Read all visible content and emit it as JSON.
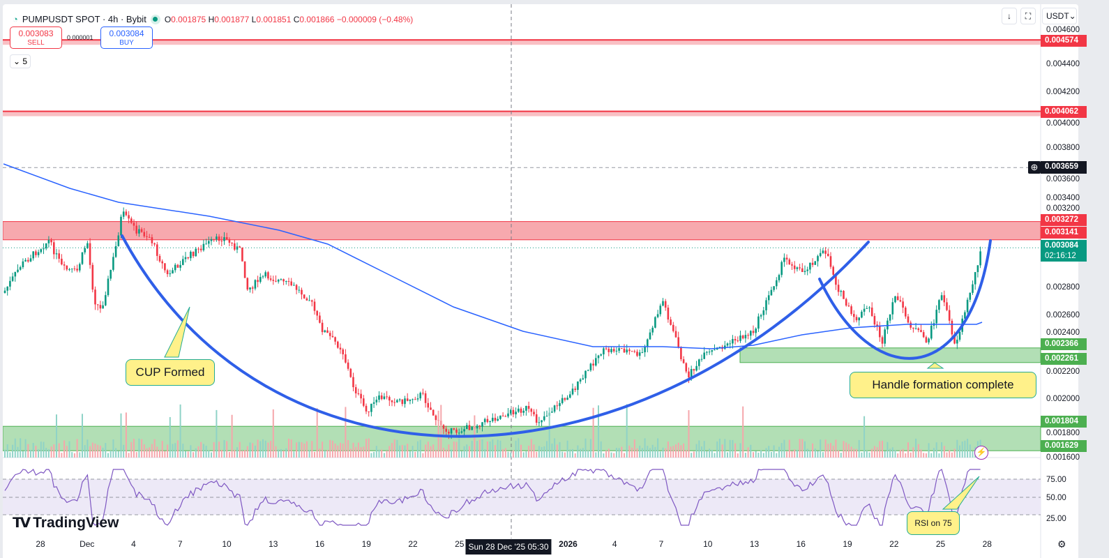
{
  "header": {
    "symbol": "PUMPUSDT SPOT · 4h · Bybit",
    "open_label": "O",
    "open": "0.001875",
    "high_label": "H",
    "high": "0.001877",
    "low_label": "L",
    "low": "0.001851",
    "close_label": "C",
    "close": "0.001866",
    "change": "−0.000009 (−0.48%)"
  },
  "trade": {
    "sell_price": "0.003083",
    "sell_label": "SELL",
    "buy_price": "0.003084",
    "buy_label": "BUY",
    "spread": "0.000001"
  },
  "indicators_toggle": "5",
  "toolbar": {
    "currency": "USDT",
    "currency_chevron": "⌄",
    "down_icon": "↓",
    "fullscreen_icon": "⛶"
  },
  "price_axis": {
    "ticks": [
      "0.004600",
      "0.004400",
      "0.004200",
      "0.004000",
      "0.003800",
      "0.003600",
      "0.003400",
      "0.003200",
      "0.002800",
      "0.002600",
      "0.002400",
      "0.002200",
      "0.002000",
      "0.001800",
      "0.001600"
    ]
  },
  "levels": {
    "r1": "0.004574",
    "r2": "0.004062",
    "crosshair": "0.003659",
    "zone_top": "0.003272",
    "zone_bottom": "0.003141",
    "current": "0.003084",
    "countdown": "02:16:12",
    "g1": "0.002366",
    "g2": "0.002261",
    "g3": "0.001804",
    "g4": "0.001629"
  },
  "rsi_axis": [
    "75.00",
    "50.00",
    "25.00"
  ],
  "time_axis": [
    "28",
    "Dec",
    "4",
    "7",
    "10",
    "13",
    "16",
    "19",
    "22",
    "25",
    "2026",
    "4",
    "7",
    "10",
    "13",
    "16",
    "19",
    "22",
    "25",
    "28"
  ],
  "crosshair_time": "Sun 28 Dec '25   05:30",
  "annotations": {
    "cup": "CUP Formed",
    "handle": "Handle formation complete",
    "rsi": "RSI on 75"
  },
  "logo": "TradingView",
  "colors": {
    "up": "#089981",
    "down": "#f23645",
    "ma": "#2962ff",
    "pattern": "#2f5fe8",
    "red_zone": "#f7a9ae",
    "green_zone": "#b2dfb5",
    "rsi": "#7e57c2"
  }
}
